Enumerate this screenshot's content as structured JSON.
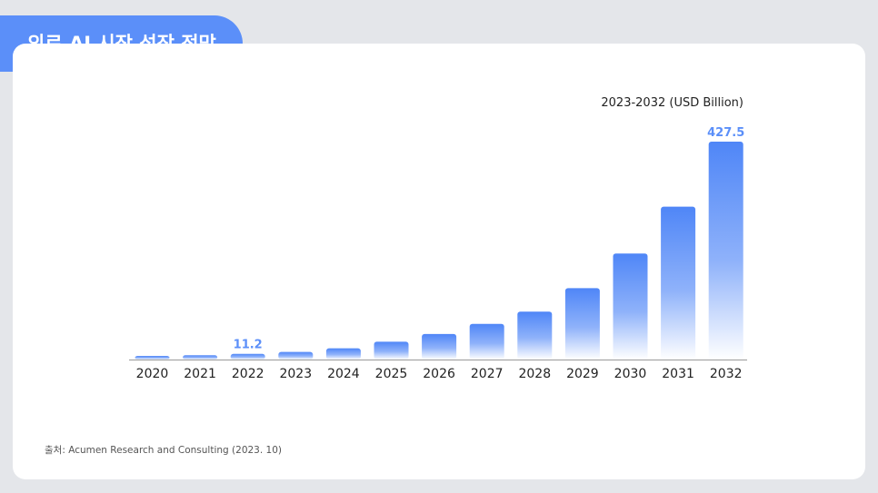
{
  "header": {
    "title": "의료 AI 시장 성장 전망"
  },
  "unit_label": "2023-2032 (USD Billion)",
  "source": "출처: Acumen Research and Consulting (2023. 10)",
  "colors": {
    "accent": "#5b8ff9",
    "bar_top": "#4f86f7",
    "bar_bottom": "#ffffff",
    "axis": "#999999"
  },
  "chart_data": {
    "type": "bar",
    "categories": [
      "2020",
      "2021",
      "2022",
      "2023",
      "2024",
      "2025",
      "2026",
      "2027",
      "2028",
      "2029",
      "2030",
      "2031",
      "2032"
    ],
    "values": [
      6.5,
      8.5,
      11.2,
      15,
      22,
      35,
      50,
      70,
      94,
      140,
      208,
      300,
      427.5
    ],
    "data_labels": [
      {
        "index": 2,
        "text": "11.2"
      },
      {
        "index": 12,
        "text": "427.5"
      }
    ],
    "ylim": [
      0,
      427.5
    ],
    "grid": false,
    "legend": "none"
  }
}
